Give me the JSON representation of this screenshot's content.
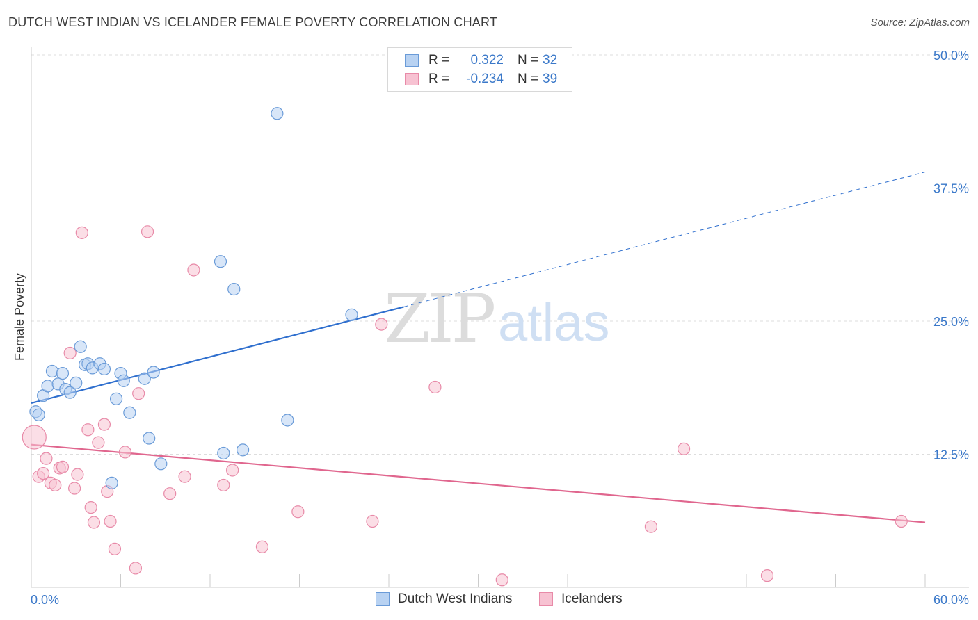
{
  "header": {
    "title": "DUTCH WEST INDIAN VS ICELANDER FEMALE POVERTY CORRELATION CHART",
    "source": "Source: ZipAtlas.com"
  },
  "watermark": {
    "zip": "ZIP",
    "atlas": "atlas"
  },
  "legend_top": {
    "rows": [
      {
        "r_label": "R =",
        "r_value": "0.322",
        "n_label": "N =",
        "n_value": "32"
      },
      {
        "r_label": "R =",
        "r_value": "-0.234",
        "n_label": "N =",
        "n_value": "39"
      }
    ]
  },
  "legend_bottom": {
    "items": [
      {
        "label": "Dutch West Indians"
      },
      {
        "label": "Icelanders"
      }
    ]
  },
  "colors": {
    "blue_fill": "#b8d2f2",
    "blue_stroke": "#6a9bd8",
    "blue_line": "#2f6fce",
    "pink_fill": "#f7c2d2",
    "pink_stroke": "#e88aa8",
    "pink_line": "#e0668e",
    "tick_label": "#3a78c9",
    "grid": "#dddddd"
  },
  "chart_data": {
    "type": "scatter",
    "title": "DUTCH WEST INDIAN VS ICELANDER FEMALE POVERTY CORRELATION CHART",
    "xlabel": "",
    "ylabel": "Female Poverty",
    "xlim": [
      0,
      60
    ],
    "ylim": [
      0,
      50
    ],
    "x_tick_labels": [
      "0.0%",
      "60.0%"
    ],
    "y_ticks": [
      12.5,
      25.0,
      37.5,
      50.0
    ],
    "y_tick_labels": [
      "12.5%",
      "25.0%",
      "37.5%",
      "50.0%"
    ],
    "grid": true,
    "legend_position": "top-center",
    "series": [
      {
        "name": "Dutch West Indians",
        "r": 0.322,
        "n": 32,
        "color": "#6a9bd8",
        "points": [
          [
            0.3,
            16.5
          ],
          [
            0.5,
            16.2
          ],
          [
            0.8,
            18.0
          ],
          [
            1.1,
            18.9
          ],
          [
            1.4,
            20.3
          ],
          [
            1.8,
            19.1
          ],
          [
            2.1,
            20.1
          ],
          [
            2.3,
            18.6
          ],
          [
            2.6,
            18.3
          ],
          [
            3.0,
            19.2
          ],
          [
            3.3,
            22.6
          ],
          [
            3.6,
            20.9
          ],
          [
            3.8,
            21.0
          ],
          [
            4.1,
            20.6
          ],
          [
            4.6,
            21.0
          ],
          [
            4.9,
            20.5
          ],
          [
            5.4,
            9.8
          ],
          [
            5.7,
            17.7
          ],
          [
            6.0,
            20.1
          ],
          [
            6.2,
            19.4
          ],
          [
            6.6,
            16.4
          ],
          [
            7.6,
            19.6
          ],
          [
            7.9,
            14.0
          ],
          [
            8.2,
            20.2
          ],
          [
            8.7,
            11.6
          ],
          [
            12.7,
            30.6
          ],
          [
            12.9,
            12.6
          ],
          [
            13.6,
            28.0
          ],
          [
            14.2,
            12.9
          ],
          [
            16.5,
            44.5
          ],
          [
            17.2,
            15.7
          ],
          [
            21.5,
            25.6
          ]
        ],
        "trend": {
          "x0": 0,
          "y0": 17.3,
          "x_solid_end": 25,
          "x1": 60,
          "y1": 39.0
        }
      },
      {
        "name": "Icelanders",
        "r": -0.234,
        "n": 39,
        "color": "#e88aa8",
        "points": [
          [
            0.2,
            14.1
          ],
          [
            0.5,
            10.4
          ],
          [
            0.8,
            10.7
          ],
          [
            1.0,
            12.1
          ],
          [
            1.3,
            9.8
          ],
          [
            1.6,
            9.6
          ],
          [
            1.9,
            11.2
          ],
          [
            2.1,
            11.3
          ],
          [
            2.6,
            22.0
          ],
          [
            2.9,
            9.3
          ],
          [
            3.1,
            10.6
          ],
          [
            3.4,
            33.3
          ],
          [
            3.8,
            14.8
          ],
          [
            4.0,
            7.5
          ],
          [
            4.2,
            6.1
          ],
          [
            4.5,
            13.6
          ],
          [
            4.9,
            15.3
          ],
          [
            5.1,
            9.0
          ],
          [
            5.3,
            6.2
          ],
          [
            5.6,
            3.6
          ],
          [
            6.3,
            12.7
          ],
          [
            7.0,
            1.8
          ],
          [
            7.2,
            18.2
          ],
          [
            7.8,
            33.4
          ],
          [
            9.3,
            8.8
          ],
          [
            10.3,
            10.4
          ],
          [
            10.9,
            29.8
          ],
          [
            12.9,
            9.6
          ],
          [
            13.5,
            11.0
          ],
          [
            15.5,
            3.8
          ],
          [
            17.9,
            7.1
          ],
          [
            22.9,
            6.2
          ],
          [
            23.5,
            24.7
          ],
          [
            27.1,
            18.8
          ],
          [
            31.6,
            0.7
          ],
          [
            41.6,
            5.7
          ],
          [
            43.8,
            13.0
          ],
          [
            49.4,
            1.1
          ],
          [
            58.4,
            6.2
          ]
        ],
        "trend": {
          "x0": 0,
          "y0": 13.4,
          "x1": 60,
          "y1": 6.1
        }
      }
    ]
  }
}
